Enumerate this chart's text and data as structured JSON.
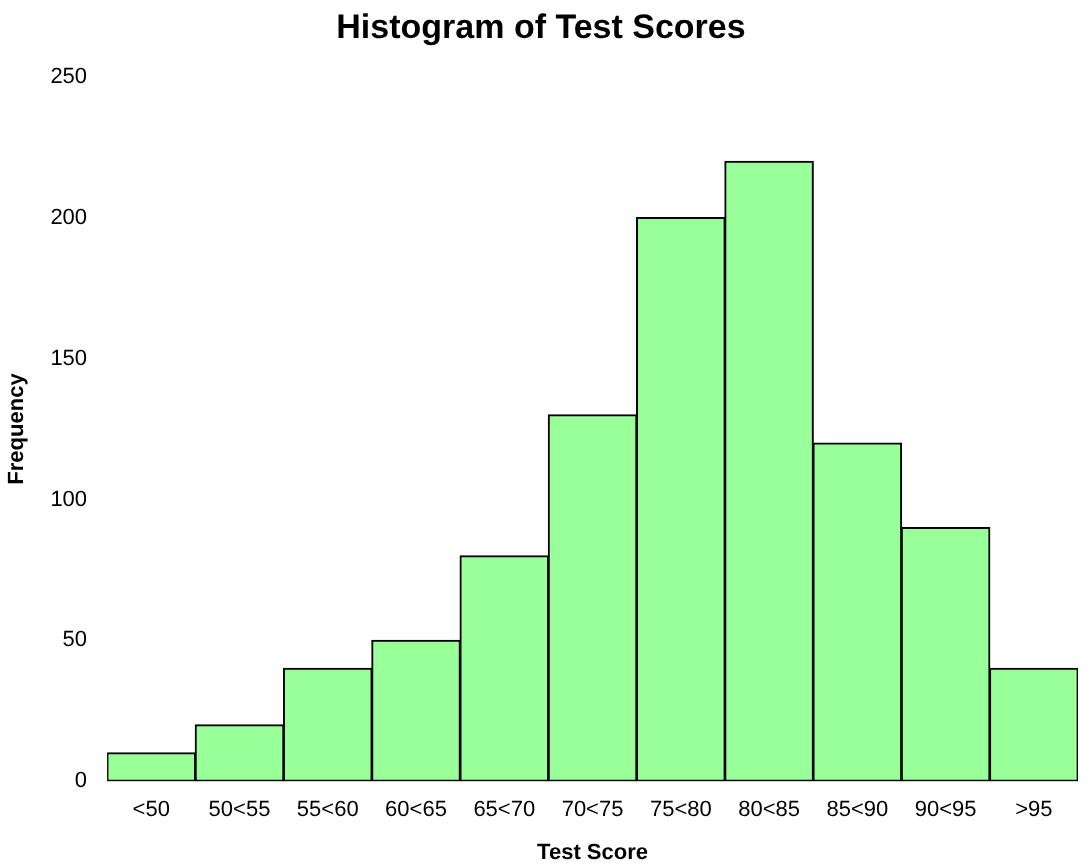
{
  "chart_data": {
    "type": "bar",
    "title": "Histogram of Test Scores",
    "categories": [
      "<50",
      "50<55",
      "55<60",
      "60<65",
      "65<70",
      "70<75",
      "75<80",
      "80<85",
      "85<90",
      "90<95",
      ">95"
    ],
    "values": [
      10,
      20,
      40,
      50,
      80,
      130,
      200,
      220,
      120,
      90,
      40
    ],
    "color": "#99ff99",
    "xlabel": "Test Score",
    "ylabel": "Frequency",
    "ylim": [
      0,
      250
    ],
    "yticks": [
      0,
      50,
      100,
      150,
      200,
      250
    ]
  }
}
